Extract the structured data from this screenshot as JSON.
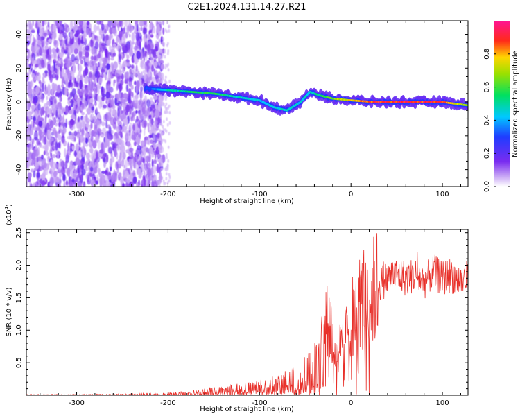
{
  "title": "C2E1.2024.131.14.27.R21",
  "colors": {
    "signal": "#e8302a",
    "spectral_core": "#e8302a",
    "spectral_noise": "#7a2cf0"
  },
  "chart_data": [
    {
      "type": "heatmap",
      "xlabel": "Height of straight line (km)",
      "ylabel": "Frequency (Hz)",
      "xlim": [
        -355,
        128
      ],
      "ylim": [
        -50,
        48
      ],
      "x_ticks": [
        -300,
        -200,
        -100,
        0,
        100
      ],
      "x_tick_labels": [
        "-300",
        "-200",
        "-100",
        "0",
        "100"
      ],
      "y_ticks": [
        -40,
        -20,
        0,
        20,
        40
      ],
      "y_tick_labels": [
        "-40",
        "-20",
        "0",
        "20",
        "40"
      ],
      "ridge": {
        "x": [
          -225,
          -200,
          -175,
          -150,
          -125,
          -100,
          -85,
          -70,
          -55,
          -45,
          -35,
          -20,
          0,
          25,
          50,
          75,
          100,
          128
        ],
        "y": [
          8,
          7,
          6,
          5,
          3,
          1,
          -3,
          -5,
          0,
          6,
          4,
          2,
          1,
          0,
          0,
          0,
          0,
          -2
        ],
        "amplitude": [
          0.3,
          0.5,
          0.55,
          0.6,
          0.5,
          0.45,
          0.45,
          0.5,
          0.45,
          0.5,
          0.55,
          0.7,
          0.8,
          0.95,
          0.95,
          0.95,
          0.95,
          0.7
        ]
      },
      "colorbar": {
        "label": "Normalized spectral amplitude",
        "range": [
          0.0,
          1.0
        ],
        "ticks": [
          0.0,
          0.2,
          0.4,
          0.6,
          0.8
        ],
        "tick_labels": [
          "0.0",
          "0.2",
          "0.4",
          "0.6",
          "0.8"
        ],
        "colormap": "rainbow (white-purple-blue-cyan-green-yellow-red-magenta)"
      }
    },
    {
      "type": "line",
      "xlabel": "Height of straight line (km)",
      "ylabel": "SNR (10 * v/v)",
      "y_multiplier": "(x10",
      "y_multiplier_exp": "4",
      "y_multiplier_close": ")",
      "xlim": [
        -355,
        128
      ],
      "ylim": [
        0,
        2.55
      ],
      "x_ticks": [
        -300,
        -200,
        -100,
        0,
        100
      ],
      "x_tick_labels": [
        "-300",
        "-200",
        "-100",
        "0",
        "100"
      ],
      "y_ticks": [
        0.5,
        1.0,
        1.5,
        2.0,
        2.5
      ],
      "y_tick_labels": [
        "0.5",
        "1.0",
        "1.5",
        "2.0",
        "2.5"
      ],
      "series": [
        {
          "x": [
            -355,
            -300,
            -250,
            -210,
            -180,
            -150,
            -120,
            -100,
            -80,
            -60,
            -45,
            -35,
            -30,
            -25,
            -20,
            -15,
            -10,
            -5,
            0,
            5,
            10,
            20,
            30,
            40,
            50,
            60,
            70,
            80,
            90,
            100,
            110,
            120,
            128
          ],
          "y": [
            0.01,
            0.01,
            0.015,
            0.02,
            0.04,
            0.08,
            0.12,
            0.15,
            0.2,
            0.3,
            0.45,
            0.6,
            1.7,
            1.2,
            0.9,
            0.6,
            0.8,
            0.9,
            1.3,
            1.2,
            1.45,
            1.5,
            1.7,
            1.8,
            1.85,
            1.8,
            1.85,
            1.75,
            1.9,
            1.8,
            1.85,
            1.75,
            1.8
          ]
        }
      ]
    }
  ]
}
